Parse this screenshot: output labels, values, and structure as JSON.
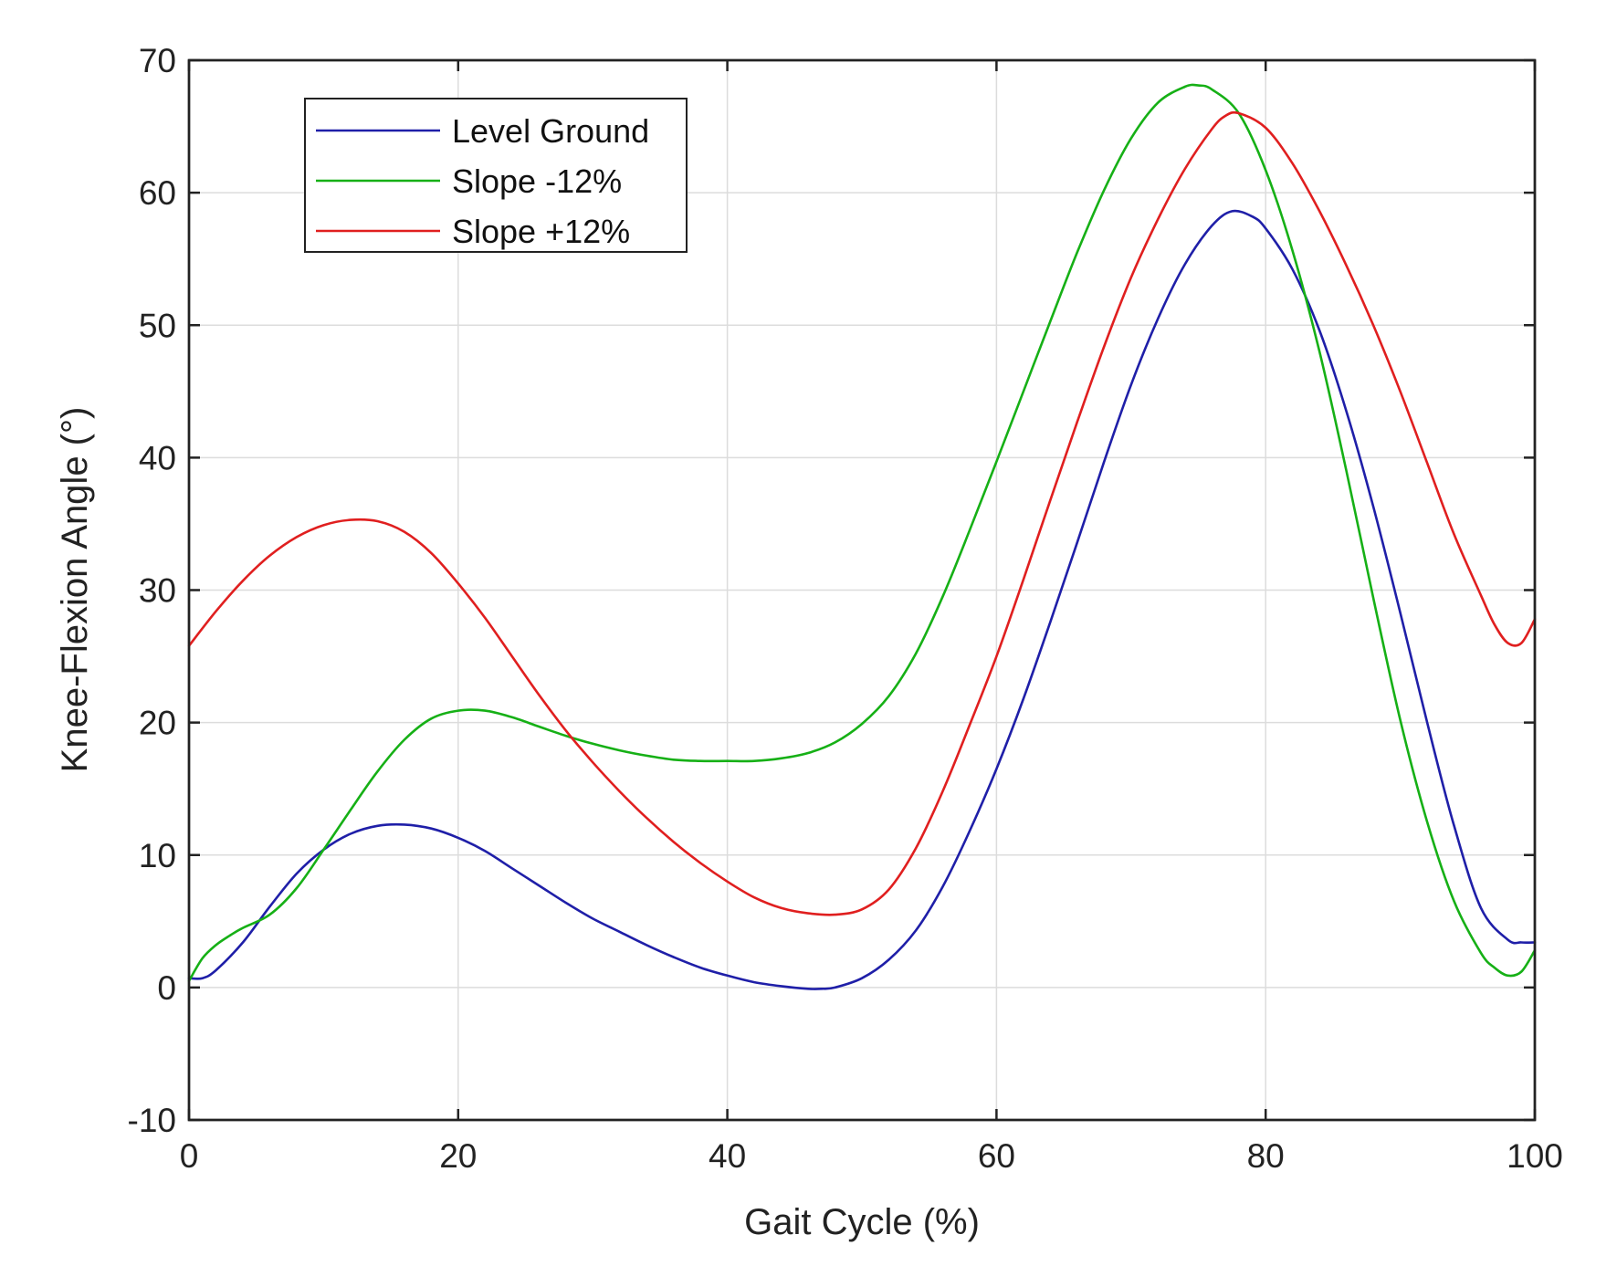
{
  "chart_data": {
    "type": "line",
    "title": "",
    "xlabel": "Gait Cycle (%)",
    "ylabel": "Knee-Flexion Angle (°)",
    "xlim": [
      0,
      100
    ],
    "ylim": [
      -10,
      70
    ],
    "xticks": [
      0,
      20,
      40,
      60,
      80,
      100
    ],
    "yticks": [
      -10,
      0,
      10,
      20,
      30,
      40,
      50,
      60,
      70
    ],
    "xtick_labels": [
      "0",
      "20",
      "40",
      "60",
      "80",
      "100"
    ],
    "ytick_labels": [
      "-10",
      "0",
      "10",
      "20",
      "30",
      "40",
      "50",
      "60",
      "70"
    ],
    "grid": true,
    "legend_position": "top-left",
    "series": [
      {
        "name": "Level Ground",
        "color": "#1f1fa8",
        "x": [
          0,
          1,
          2,
          4,
          6,
          8,
          10,
          12,
          14,
          16,
          18,
          20,
          22,
          24,
          26,
          28,
          30,
          32,
          34,
          36,
          38,
          40,
          42,
          44,
          46,
          47,
          48,
          50,
          52,
          54,
          56,
          58,
          60,
          62,
          64,
          66,
          68,
          70,
          72,
          74,
          76,
          77.5,
          79,
          80,
          82,
          84,
          86,
          88,
          90,
          92,
          94,
          96,
          98,
          99,
          100
        ],
        "y": [
          0.7,
          0.7,
          1.3,
          3.4,
          6.1,
          8.6,
          10.4,
          11.6,
          12.2,
          12.3,
          12.0,
          11.3,
          10.3,
          9.0,
          7.7,
          6.4,
          5.2,
          4.2,
          3.2,
          2.3,
          1.5,
          0.9,
          0.4,
          0.1,
          -0.1,
          -0.1,
          0.0,
          0.7,
          2.1,
          4.3,
          7.6,
          11.8,
          16.5,
          21.8,
          27.6,
          33.6,
          39.7,
          45.5,
          50.5,
          54.6,
          57.5,
          58.6,
          58.2,
          57.3,
          54.2,
          49.6,
          43.5,
          36.3,
          28.3,
          20.0,
          12.2,
          6.0,
          3.6,
          3.4,
          3.4
        ]
      },
      {
        "name": "Slope -12%",
        "color": "#16b016",
        "x": [
          0,
          1,
          2,
          3,
          4,
          6,
          8,
          10,
          12,
          14,
          16,
          18,
          20,
          22,
          24,
          26,
          28,
          30,
          32,
          34,
          36,
          38,
          40,
          42,
          44,
          46,
          48,
          50,
          52,
          54,
          56,
          58,
          60,
          62,
          64,
          66,
          68,
          70,
          72,
          74,
          75,
          76,
          78,
          80,
          82,
          84,
          86,
          88,
          90,
          92,
          94,
          96,
          97,
          98,
          99,
          100
        ],
        "y": [
          0.5,
          2.2,
          3.2,
          3.9,
          4.5,
          5.5,
          7.5,
          10.4,
          13.4,
          16.3,
          18.7,
          20.3,
          20.9,
          20.9,
          20.4,
          19.7,
          19.0,
          18.4,
          17.9,
          17.5,
          17.2,
          17.1,
          17.1,
          17.1,
          17.3,
          17.7,
          18.5,
          19.9,
          22.0,
          25.2,
          29.5,
          34.5,
          39.7,
          45.0,
          50.3,
          55.5,
          60.2,
          64.1,
          66.8,
          68.0,
          68.1,
          67.8,
          66.0,
          61.7,
          55.6,
          48.0,
          39.0,
          29.4,
          20.2,
          12.5,
          6.5,
          2.6,
          1.5,
          0.9,
          1.2,
          2.8
        ]
      },
      {
        "name": "Slope +12%",
        "color": "#e01f1f",
        "x": [
          0,
          2,
          4,
          6,
          8,
          10,
          12,
          14,
          16,
          18,
          20,
          22,
          24,
          26,
          28,
          30,
          32,
          34,
          36,
          38,
          40,
          42,
          44,
          46,
          48,
          50,
          52,
          54,
          56,
          58,
          60,
          62,
          64,
          66,
          68,
          70,
          72,
          74,
          76,
          77,
          78,
          80,
          82,
          84,
          86,
          88,
          90,
          92,
          94,
          96,
          97,
          98,
          99,
          100
        ],
        "y": [
          25.8,
          28.4,
          30.7,
          32.6,
          34.0,
          34.9,
          35.3,
          35.2,
          34.4,
          32.8,
          30.5,
          27.9,
          25.0,
          22.1,
          19.4,
          17.0,
          14.8,
          12.8,
          11.0,
          9.4,
          8.0,
          6.8,
          6.0,
          5.6,
          5.5,
          5.9,
          7.4,
          10.5,
          14.8,
          19.8,
          25.0,
          30.8,
          36.8,
          42.7,
          48.4,
          53.6,
          58.0,
          61.8,
          64.8,
          65.8,
          66.0,
          64.9,
          62.2,
          58.6,
          54.5,
          50.0,
          45.0,
          39.6,
          34.2,
          29.6,
          27.4,
          26.0,
          26.0,
          27.8
        ]
      }
    ]
  }
}
